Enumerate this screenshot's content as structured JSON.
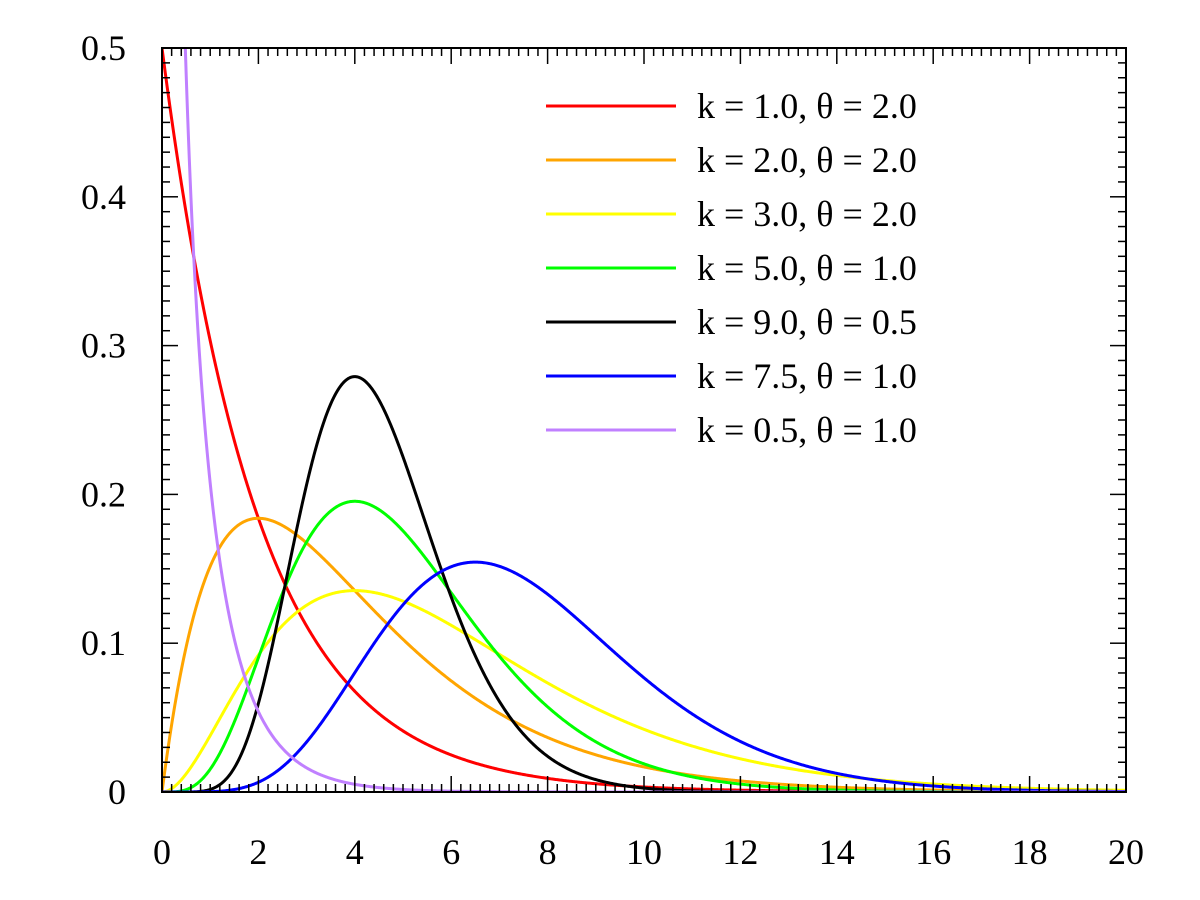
{
  "chart_data": {
    "type": "line",
    "title": "",
    "xlabel": "",
    "ylabel": "",
    "xlim": [
      0,
      20
    ],
    "ylim": [
      0,
      0.5
    ],
    "x_ticks": [
      "0",
      "2",
      "4",
      "6",
      "8",
      "10",
      "12",
      "14",
      "16",
      "18",
      "20"
    ],
    "y_ticks": [
      "0",
      "0.1",
      "0.2",
      "0.3",
      "0.4",
      "0.5"
    ],
    "grid": false,
    "legend_position": "top-right",
    "curve_kind": "gamma probability density",
    "series": [
      {
        "name": "k = 1.0, θ = 2.0",
        "k": 1.0,
        "theta": 2.0,
        "color": "#ff0000"
      },
      {
        "name": "k = 2.0, θ = 2.0",
        "k": 2.0,
        "theta": 2.0,
        "color": "#ffa500"
      },
      {
        "name": "k = 3.0, θ = 2.0",
        "k": 3.0,
        "theta": 2.0,
        "color": "#ffff00"
      },
      {
        "name": "k = 5.0, θ = 1.0",
        "k": 5.0,
        "theta": 1.0,
        "color": "#00ff00"
      },
      {
        "name": "k = 9.0, θ = 0.5",
        "k": 9.0,
        "theta": 0.5,
        "color": "#000000"
      },
      {
        "name": "k = 7.5, θ = 1.0",
        "k": 7.5,
        "theta": 1.0,
        "color": "#0000ff"
      },
      {
        "name": "k = 0.5, θ = 1.0",
        "k": 0.5,
        "theta": 1.0,
        "color": "#c080ff"
      }
    ]
  }
}
